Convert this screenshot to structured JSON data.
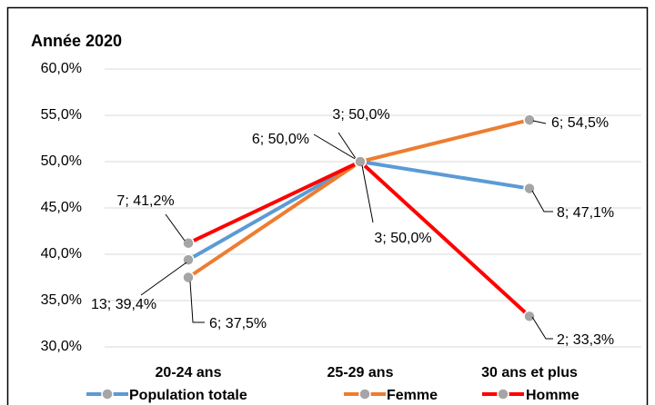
{
  "chart_data": {
    "type": "line",
    "title": "Année 2020",
    "categories": [
      "20-24 ans",
      "25-29 ans",
      "30 ans et plus"
    ],
    "series": [
      {
        "name": "Population totale",
        "color": "#5b9bd5",
        "values": [
          39.4,
          50.0,
          47.1
        ],
        "value_labels": [
          "13; 39,4%",
          "6; 50,0%",
          "8; 47,1%"
        ]
      },
      {
        "name": "Femme",
        "color": "#ed7d31",
        "values": [
          37.5,
          50.0,
          54.5
        ],
        "value_labels": [
          "6; 37,5%",
          "3; 50,0%",
          "6; 54,5%"
        ]
      },
      {
        "name": "Homme",
        "color": "#ff0000",
        "values": [
          41.2,
          50.0,
          33.3
        ],
        "value_labels": [
          "7; 41,2%",
          "3; 50,0%",
          "2; 33,3%"
        ]
      }
    ],
    "ylim": [
      30,
      60
    ],
    "yticks": [
      {
        "value": 30,
        "label": "30,0%"
      },
      {
        "value": 35,
        "label": "35,0%"
      },
      {
        "value": 40,
        "label": "40,0%"
      },
      {
        "value": 45,
        "label": "45,0%"
      },
      {
        "value": 50,
        "label": "50,0%"
      },
      {
        "value": 55,
        "label": "55,0%"
      },
      {
        "value": 60,
        "label": "60,0%"
      }
    ],
    "grid": true,
    "legend": "bottom"
  }
}
